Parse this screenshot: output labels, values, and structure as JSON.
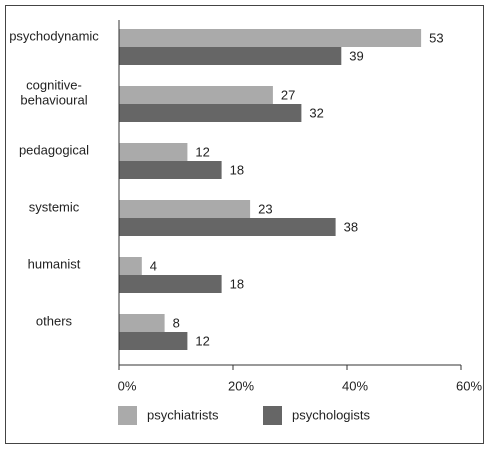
{
  "chart_data": {
    "type": "bar",
    "orientation": "horizontal",
    "categories": [
      "psychodynamic",
      "cognitive-behavioural",
      "pedagogical",
      "systemic",
      "humanist",
      "others"
    ],
    "series": [
      {
        "name": "psychiatrists",
        "color": "#aaaaaa",
        "values": [
          53,
          27,
          12,
          23,
          4,
          8
        ]
      },
      {
        "name": "psychologists",
        "color": "#666666",
        "values": [
          39,
          32,
          18,
          38,
          18,
          12
        ]
      }
    ],
    "xlim": [
      0,
      60
    ],
    "xticks": [
      {
        "value": 0,
        "label": "0%"
      },
      {
        "value": 20,
        "label": "20%"
      },
      {
        "value": 40,
        "label": "40%"
      },
      {
        "value": 60,
        "label": "60%"
      }
    ],
    "legend": "bottom"
  }
}
